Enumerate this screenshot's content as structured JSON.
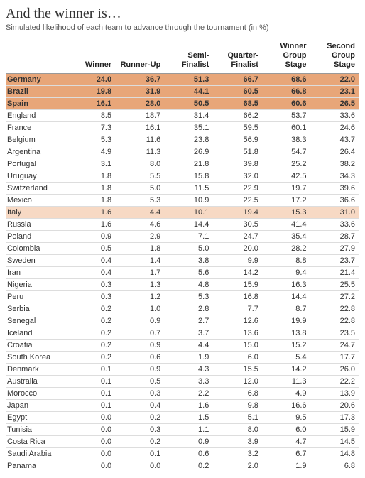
{
  "title": "And the winner is…",
  "subtitle": "Simulated likelihood of each team to advance through the tournament (in %)",
  "columns": [
    "",
    "Winner",
    "Runner-Up",
    "Semi-\nFinalist",
    "Quarter-\nFinalist",
    "Winner\nGroup\nStage",
    "Second\nGroup\nStage"
  ],
  "highlight_colors": {
    "strong": "#e8a679",
    "light": "#f7d9c4",
    "none": "#ffffff"
  },
  "rows": [
    {
      "team": "Germany",
      "bold": true,
      "bg": "strong",
      "v": [
        "24.0",
        "36.7",
        "51.3",
        "66.7",
        "68.6",
        "22.0"
      ]
    },
    {
      "team": "Brazil",
      "bold": true,
      "bg": "strong",
      "v": [
        "19.8",
        "31.9",
        "44.1",
        "60.5",
        "66.8",
        "23.1"
      ]
    },
    {
      "team": "Spain",
      "bold": true,
      "bg": "strong",
      "v": [
        "16.1",
        "28.0",
        "50.5",
        "68.5",
        "60.6",
        "26.5"
      ]
    },
    {
      "team": "England",
      "bold": false,
      "bg": "none",
      "v": [
        "8.5",
        "18.7",
        "31.4",
        "66.2",
        "53.7",
        "33.6"
      ]
    },
    {
      "team": "France",
      "bold": false,
      "bg": "none",
      "v": [
        "7.3",
        "16.1",
        "35.1",
        "59.5",
        "60.1",
        "24.6"
      ]
    },
    {
      "team": "Belgium",
      "bold": false,
      "bg": "none",
      "v": [
        "5.3",
        "11.6",
        "23.8",
        "56.9",
        "38.3",
        "43.7"
      ]
    },
    {
      "team": "Argentina",
      "bold": false,
      "bg": "none",
      "v": [
        "4.9",
        "11.3",
        "26.9",
        "51.8",
        "54.7",
        "26.4"
      ]
    },
    {
      "team": "Portugal",
      "bold": false,
      "bg": "none",
      "v": [
        "3.1",
        "8.0",
        "21.8",
        "39.8",
        "25.2",
        "38.2"
      ]
    },
    {
      "team": "Uruguay",
      "bold": false,
      "bg": "none",
      "v": [
        "1.8",
        "5.5",
        "15.8",
        "32.0",
        "42.5",
        "34.3"
      ]
    },
    {
      "team": "Switzerland",
      "bold": false,
      "bg": "none",
      "v": [
        "1.8",
        "5.0",
        "11.5",
        "22.9",
        "19.7",
        "39.6"
      ]
    },
    {
      "team": "Mexico",
      "bold": false,
      "bg": "none",
      "v": [
        "1.8",
        "5.3",
        "10.9",
        "22.5",
        "17.2",
        "36.6"
      ]
    },
    {
      "team": "Italy",
      "bold": false,
      "bg": "light",
      "v": [
        "1.6",
        "4.4",
        "10.1",
        "19.4",
        "15.3",
        "31.0"
      ]
    },
    {
      "team": "Russia",
      "bold": false,
      "bg": "none",
      "v": [
        "1.6",
        "4.6",
        "14.4",
        "30.5",
        "41.4",
        "33.6"
      ]
    },
    {
      "team": "Poland",
      "bold": false,
      "bg": "none",
      "v": [
        "0.9",
        "2.9",
        "7.1",
        "24.7",
        "35.4",
        "28.7"
      ]
    },
    {
      "team": "Colombia",
      "bold": false,
      "bg": "none",
      "v": [
        "0.5",
        "1.8",
        "5.0",
        "20.0",
        "28.2",
        "27.9"
      ]
    },
    {
      "team": "Sweden",
      "bold": false,
      "bg": "none",
      "v": [
        "0.4",
        "1.4",
        "3.8",
        "9.9",
        "8.8",
        "23.7"
      ]
    },
    {
      "team": "Iran",
      "bold": false,
      "bg": "none",
      "v": [
        "0.4",
        "1.7",
        "5.6",
        "14.2",
        "9.4",
        "21.4"
      ]
    },
    {
      "team": "Nigeria",
      "bold": false,
      "bg": "none",
      "v": [
        "0.3",
        "1.3",
        "4.8",
        "15.9",
        "16.3",
        "25.5"
      ]
    },
    {
      "team": "Peru",
      "bold": false,
      "bg": "none",
      "v": [
        "0.3",
        "1.2",
        "5.3",
        "16.8",
        "14.4",
        "27.2"
      ]
    },
    {
      "team": "Serbia",
      "bold": false,
      "bg": "none",
      "v": [
        "0.2",
        "1.0",
        "2.8",
        "7.7",
        "8.7",
        "22.8"
      ]
    },
    {
      "team": "Senegal",
      "bold": false,
      "bg": "none",
      "v": [
        "0.2",
        "0.9",
        "2.7",
        "12.6",
        "19.9",
        "22.8"
      ]
    },
    {
      "team": "Iceland",
      "bold": false,
      "bg": "none",
      "v": [
        "0.2",
        "0.7",
        "3.7",
        "13.6",
        "13.8",
        "23.5"
      ]
    },
    {
      "team": "Croatia",
      "bold": false,
      "bg": "none",
      "v": [
        "0.2",
        "0.9",
        "4.4",
        "15.0",
        "15.2",
        "24.7"
      ]
    },
    {
      "team": "South Korea",
      "bold": false,
      "bg": "none",
      "v": [
        "0.2",
        "0.6",
        "1.9",
        "6.0",
        "5.4",
        "17.7"
      ]
    },
    {
      "team": "Denmark",
      "bold": false,
      "bg": "none",
      "v": [
        "0.1",
        "0.9",
        "4.3",
        "15.5",
        "14.2",
        "26.0"
      ]
    },
    {
      "team": "Australia",
      "bold": false,
      "bg": "none",
      "v": [
        "0.1",
        "0.5",
        "3.3",
        "12.0",
        "11.3",
        "22.2"
      ]
    },
    {
      "team": "Morocco",
      "bold": false,
      "bg": "none",
      "v": [
        "0.1",
        "0.3",
        "2.2",
        "6.8",
        "4.9",
        "13.9"
      ]
    },
    {
      "team": "Japan",
      "bold": false,
      "bg": "none",
      "v": [
        "0.1",
        "0.4",
        "1.6",
        "9.8",
        "16.6",
        "20.6"
      ]
    },
    {
      "team": "Egypt",
      "bold": false,
      "bg": "none",
      "v": [
        "0.0",
        "0.2",
        "1.5",
        "5.1",
        "9.5",
        "17.3"
      ]
    },
    {
      "team": "Tunisia",
      "bold": false,
      "bg": "none",
      "v": [
        "0.0",
        "0.3",
        "1.1",
        "8.0",
        "6.0",
        "15.9"
      ]
    },
    {
      "team": "Costa Rica",
      "bold": false,
      "bg": "none",
      "v": [
        "0.0",
        "0.2",
        "0.9",
        "3.9",
        "4.7",
        "14.5"
      ]
    },
    {
      "team": "Saudi Arabia",
      "bold": false,
      "bg": "none",
      "v": [
        "0.0",
        "0.1",
        "0.6",
        "3.2",
        "6.7",
        "14.8"
      ]
    },
    {
      "team": "Panama",
      "bold": false,
      "bg": "none",
      "v": [
        "0.0",
        "0.0",
        "0.2",
        "2.0",
        "1.9",
        "6.8"
      ]
    }
  ]
}
